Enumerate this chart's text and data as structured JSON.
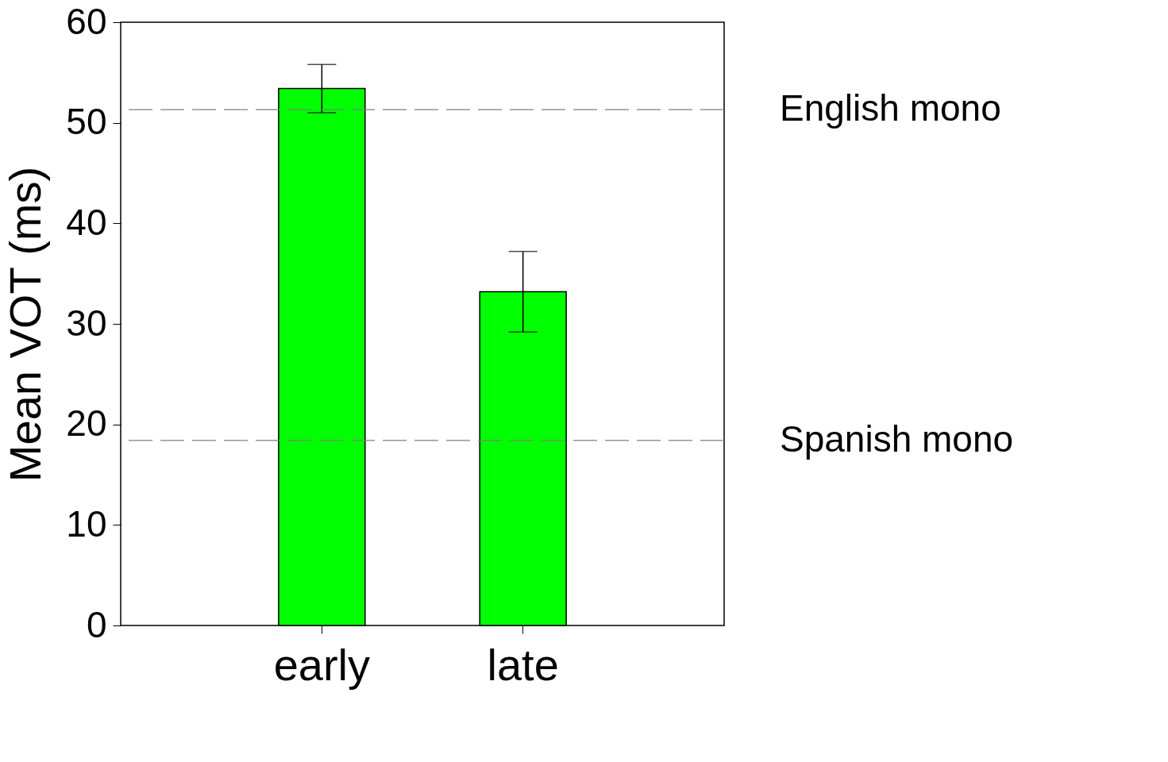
{
  "chart_data": {
    "type": "bar",
    "ylabel": "Mean VOT (ms)",
    "categories": [
      "early",
      "late"
    ],
    "values": [
      53.4,
      33.2
    ],
    "errors": [
      2.4,
      4.0
    ],
    "color": "#00ff00",
    "ylim": [
      0,
      60
    ],
    "yticks": [
      0,
      10,
      20,
      30,
      40,
      50,
      60
    ],
    "grid": false,
    "ref_lines": [
      {
        "axis": "y",
        "value": 51.3,
        "label": "English mono",
        "color": "#808080",
        "line_style": "dashed"
      },
      {
        "axis": "y",
        "value": 18.4,
        "label": "Spanish mono",
        "color": "#808080",
        "line_style": "dashed"
      }
    ]
  }
}
